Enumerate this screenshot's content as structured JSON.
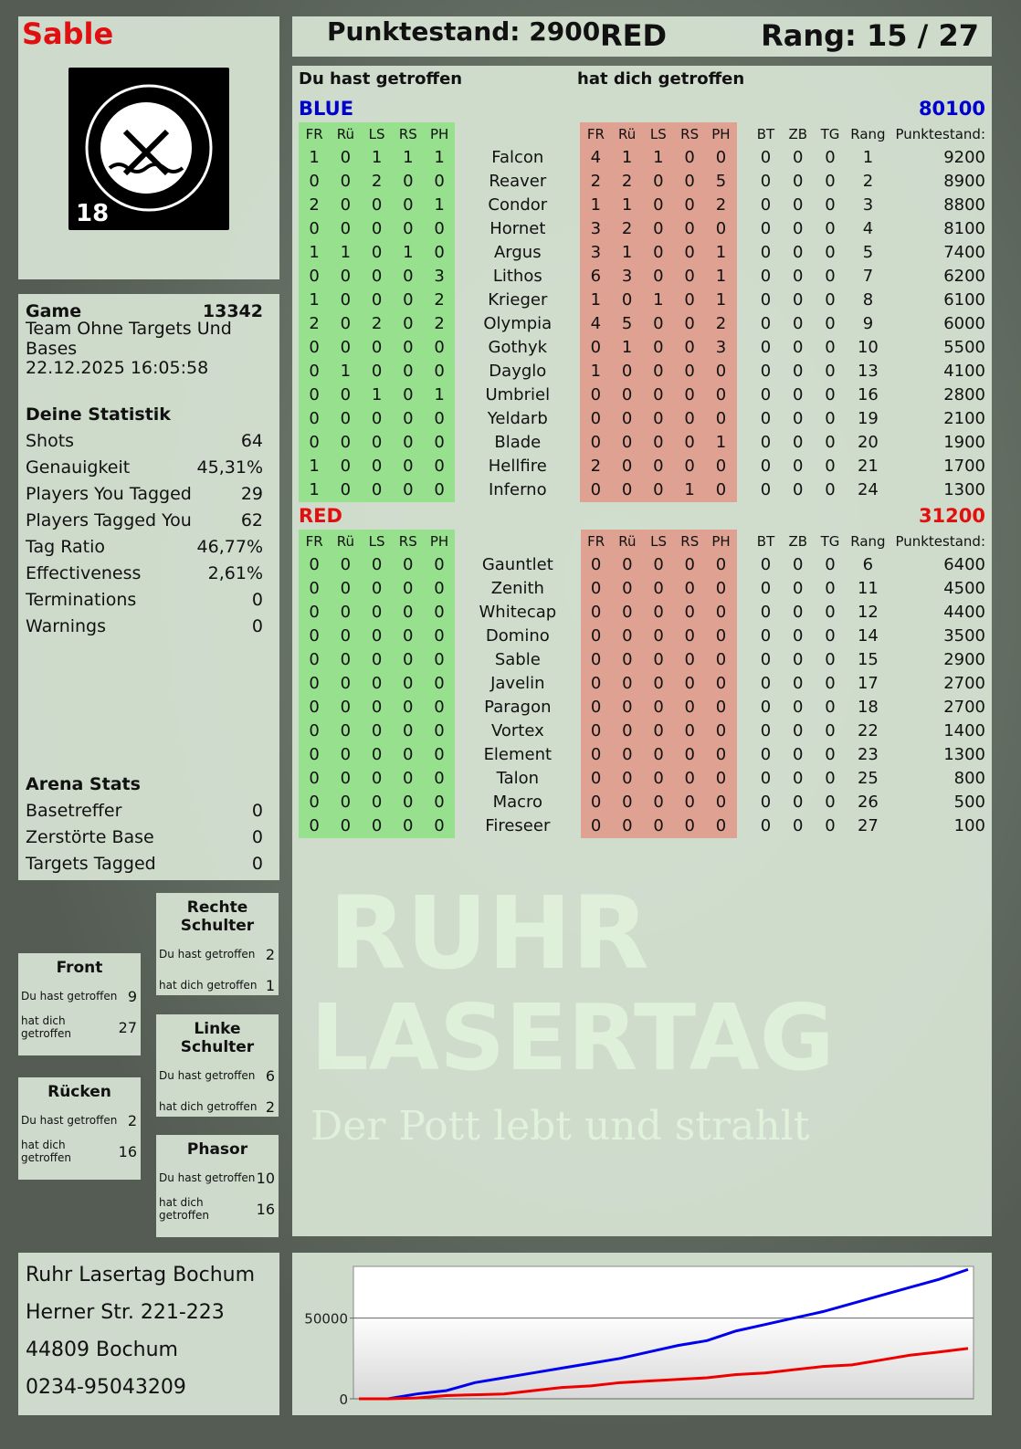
{
  "player": {
    "name": "Sable",
    "logo_text": "RUHR LASERTAG",
    "logo_badge": "18"
  },
  "header": {
    "score_label": "Punktestand: 2900",
    "team": "RED",
    "rank_label": "Rang: 15 / 27"
  },
  "game": {
    "label": "Game",
    "id": "13342",
    "mode": "Team Ohne Targets Und Bases",
    "datetime": "22.12.2025 16:05:58"
  },
  "stats": {
    "title": "Deine Statistik",
    "items": [
      {
        "label": "Shots",
        "value": "64"
      },
      {
        "label": "Genauigkeit",
        "value": "45,31%"
      },
      {
        "label": "Players You Tagged",
        "value": "29"
      },
      {
        "label": "Players Tagged You",
        "value": "62"
      },
      {
        "label": "Tag Ratio",
        "value": "46,77%"
      },
      {
        "label": "Effectiveness",
        "value": "2,61%"
      },
      {
        "label": "Terminations",
        "value": "0"
      },
      {
        "label": "Warnings",
        "value": "0"
      }
    ]
  },
  "arena": {
    "title": "Arena Stats",
    "items": [
      {
        "label": "Basetreffer",
        "value": "0"
      },
      {
        "label": "Zerstörte Base",
        "value": "0"
      },
      {
        "label": "Targets Tagged",
        "value": "0"
      }
    ]
  },
  "zones": [
    {
      "title": "Rechte Schulter",
      "hit_label": "Du hast getroffen",
      "hit": "2",
      "got_label": "hat dich getroffen",
      "got": "1"
    },
    {
      "title": "Front",
      "hit_label": "Du hast getroffen",
      "hit": "9",
      "got_label": "hat dich getroffen",
      "got": "27"
    },
    {
      "title": "Linke Schulter",
      "hit_label": "Du hast getroffen",
      "hit": "6",
      "got_label": "hat dich getroffen",
      "got": "2"
    },
    {
      "title": "Rücken",
      "hit_label": "Du hast getroffen",
      "hit": "2",
      "got_label": "hat dich getroffen",
      "got": "16"
    },
    {
      "title": "Phasor",
      "hit_label": "Du hast getroffen",
      "hit": "10",
      "got_label": "hat dich getroffen",
      "got": "16"
    }
  ],
  "address": [
    "Ruhr Lasertag Bochum",
    "Herner Str. 221-223",
    "44809 Bochum",
    "0234-95043209"
  ],
  "main": {
    "hit_label": "Du hast getroffen",
    "got_label": "hat dich getroffen",
    "columns": {
      "hit": [
        "FR",
        "Rü",
        "LS",
        "RS",
        "PH"
      ],
      "got": [
        "FR",
        "Rü",
        "LS",
        "RS",
        "PH"
      ],
      "extra": [
        "BT",
        "ZB",
        "TG",
        "Rang",
        "Punktestand:"
      ]
    },
    "teams": [
      {
        "name": "BLUE",
        "score": "80100",
        "color": "#0000cc",
        "players": [
          [
            "Falcon",
            [
              1,
              0,
              1,
              1,
              1
            ],
            [
              4,
              1,
              1,
              0,
              0
            ],
            [
              0,
              0,
              0,
              1,
              9200
            ]
          ],
          [
            "Reaver",
            [
              0,
              0,
              2,
              0,
              0
            ],
            [
              2,
              2,
              0,
              0,
              5
            ],
            [
              0,
              0,
              0,
              2,
              8900
            ]
          ],
          [
            "Condor",
            [
              2,
              0,
              0,
              0,
              1
            ],
            [
              1,
              1,
              0,
              0,
              2
            ],
            [
              0,
              0,
              0,
              3,
              8800
            ]
          ],
          [
            "Hornet",
            [
              0,
              0,
              0,
              0,
              0
            ],
            [
              3,
              2,
              0,
              0,
              0
            ],
            [
              0,
              0,
              0,
              4,
              8100
            ]
          ],
          [
            "Argus",
            [
              1,
              1,
              0,
              1,
              0
            ],
            [
              3,
              1,
              0,
              0,
              1
            ],
            [
              0,
              0,
              0,
              5,
              7400
            ]
          ],
          [
            "Lithos",
            [
              0,
              0,
              0,
              0,
              3
            ],
            [
              6,
              3,
              0,
              0,
              1
            ],
            [
              0,
              0,
              0,
              7,
              6200
            ]
          ],
          [
            "Krieger",
            [
              1,
              0,
              0,
              0,
              2
            ],
            [
              1,
              0,
              1,
              0,
              1
            ],
            [
              0,
              0,
              0,
              8,
              6100
            ]
          ],
          [
            "Olympia",
            [
              2,
              0,
              2,
              0,
              2
            ],
            [
              4,
              5,
              0,
              0,
              2
            ],
            [
              0,
              0,
              0,
              9,
              6000
            ]
          ],
          [
            "Gothyk",
            [
              0,
              0,
              0,
              0,
              0
            ],
            [
              0,
              1,
              0,
              0,
              3
            ],
            [
              0,
              0,
              0,
              10,
              5500
            ]
          ],
          [
            "Dayglo",
            [
              0,
              1,
              0,
              0,
              0
            ],
            [
              1,
              0,
              0,
              0,
              0
            ],
            [
              0,
              0,
              0,
              13,
              4100
            ]
          ],
          [
            "Umbriel",
            [
              0,
              0,
              1,
              0,
              1
            ],
            [
              0,
              0,
              0,
              0,
              0
            ],
            [
              0,
              0,
              0,
              16,
              2800
            ]
          ],
          [
            "Yeldarb",
            [
              0,
              0,
              0,
              0,
              0
            ],
            [
              0,
              0,
              0,
              0,
              0
            ],
            [
              0,
              0,
              0,
              19,
              2100
            ]
          ],
          [
            "Blade",
            [
              0,
              0,
              0,
              0,
              0
            ],
            [
              0,
              0,
              0,
              0,
              1
            ],
            [
              0,
              0,
              0,
              20,
              1900
            ]
          ],
          [
            "Hellfire",
            [
              1,
              0,
              0,
              0,
              0
            ],
            [
              2,
              0,
              0,
              0,
              0
            ],
            [
              0,
              0,
              0,
              21,
              1700
            ]
          ],
          [
            "Inferno",
            [
              1,
              0,
              0,
              0,
              0
            ],
            [
              0,
              0,
              0,
              1,
              0
            ],
            [
              0,
              0,
              0,
              24,
              1300
            ]
          ]
        ]
      },
      {
        "name": "RED",
        "score": "31200",
        "color": "#e01010",
        "players": [
          [
            "Gauntlet",
            [
              0,
              0,
              0,
              0,
              0
            ],
            [
              0,
              0,
              0,
              0,
              0
            ],
            [
              0,
              0,
              0,
              6,
              6400
            ]
          ],
          [
            "Zenith",
            [
              0,
              0,
              0,
              0,
              0
            ],
            [
              0,
              0,
              0,
              0,
              0
            ],
            [
              0,
              0,
              0,
              11,
              4500
            ]
          ],
          [
            "Whitecap",
            [
              0,
              0,
              0,
              0,
              0
            ],
            [
              0,
              0,
              0,
              0,
              0
            ],
            [
              0,
              0,
              0,
              12,
              4400
            ]
          ],
          [
            "Domino",
            [
              0,
              0,
              0,
              0,
              0
            ],
            [
              0,
              0,
              0,
              0,
              0
            ],
            [
              0,
              0,
              0,
              14,
              3500
            ]
          ],
          [
            "Sable",
            [
              0,
              0,
              0,
              0,
              0
            ],
            [
              0,
              0,
              0,
              0,
              0
            ],
            [
              0,
              0,
              0,
              15,
              2900
            ]
          ],
          [
            "Javelin",
            [
              0,
              0,
              0,
              0,
              0
            ],
            [
              0,
              0,
              0,
              0,
              0
            ],
            [
              0,
              0,
              0,
              17,
              2700
            ]
          ],
          [
            "Paragon",
            [
              0,
              0,
              0,
              0,
              0
            ],
            [
              0,
              0,
              0,
              0,
              0
            ],
            [
              0,
              0,
              0,
              18,
              2700
            ]
          ],
          [
            "Vortex",
            [
              0,
              0,
              0,
              0,
              0
            ],
            [
              0,
              0,
              0,
              0,
              0
            ],
            [
              0,
              0,
              0,
              22,
              1400
            ]
          ],
          [
            "Element",
            [
              0,
              0,
              0,
              0,
              0
            ],
            [
              0,
              0,
              0,
              0,
              0
            ],
            [
              0,
              0,
              0,
              23,
              1300
            ]
          ],
          [
            "Talon",
            [
              0,
              0,
              0,
              0,
              0
            ],
            [
              0,
              0,
              0,
              0,
              0
            ],
            [
              0,
              0,
              0,
              25,
              800
            ]
          ],
          [
            "Macro",
            [
              0,
              0,
              0,
              0,
              0
            ],
            [
              0,
              0,
              0,
              0,
              0
            ],
            [
              0,
              0,
              0,
              26,
              500
            ]
          ],
          [
            "Fireseer",
            [
              0,
              0,
              0,
              0,
              0
            ],
            [
              0,
              0,
              0,
              0,
              0
            ],
            [
              0,
              0,
              0,
              27,
              100
            ]
          ]
        ]
      }
    ]
  },
  "watermark": {
    "line1": "RUHR",
    "line2": "LASERTAG",
    "line3": "Der Pott lebt und strahlt"
  },
  "chart_data": {
    "type": "line",
    "yticks": [
      0,
      50000
    ],
    "ylim": [
      0,
      82000
    ],
    "grid": true,
    "x": [
      0,
      1,
      2,
      3,
      4,
      5,
      6,
      7,
      8,
      9,
      10,
      11,
      12,
      13,
      14,
      15,
      16,
      17,
      18,
      19,
      20,
      21
    ],
    "series": [
      {
        "color": "#0000ee",
        "values": [
          0,
          0,
          3000,
          5000,
          10000,
          13000,
          16000,
          19000,
          22000,
          25000,
          29000,
          33000,
          36000,
          42000,
          46000,
          50000,
          54000,
          59000,
          64000,
          69000,
          74000,
          80100
        ]
      },
      {
        "color": "#ee0000",
        "values": [
          0,
          0,
          500,
          2000,
          2500,
          3000,
          5000,
          7000,
          8000,
          10000,
          11000,
          12000,
          13000,
          15000,
          16000,
          18000,
          20000,
          21000,
          24000,
          27000,
          29000,
          31200
        ]
      }
    ]
  }
}
